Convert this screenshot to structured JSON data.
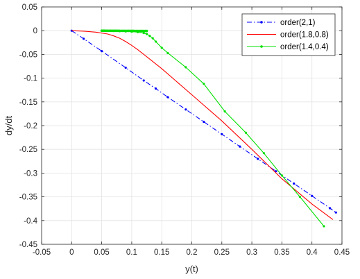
{
  "chart_data": {
    "type": "line",
    "xlabel": "y(t)",
    "ylabel": "dy/dt",
    "xlim": [
      -0.05,
      0.45
    ],
    "ylim": [
      -0.45,
      0.05
    ],
    "xticks": [
      -0.05,
      0,
      0.05,
      0.1,
      0.15,
      0.2,
      0.25,
      0.3,
      0.35,
      0.4,
      0.45
    ],
    "yticks": [
      0.05,
      0,
      -0.05,
      -0.1,
      -0.15,
      -0.2,
      -0.25,
      -0.3,
      -0.35,
      -0.4,
      -0.45
    ],
    "xtick_labels": [
      "-0.05",
      "0",
      "0.05",
      "0.1",
      "0.15",
      "0.2",
      "0.25",
      "0.3",
      "0.35",
      "0.4",
      "0.45"
    ],
    "ytick_labels": [
      "0.05",
      "0",
      "-0.05",
      "-0.1",
      "-0.15",
      "-0.2",
      "-0.25",
      "-0.3",
      "-0.35",
      "-0.4",
      "-0.45"
    ],
    "grid": true,
    "legend_position": "top-right",
    "series": [
      {
        "name": "order(2,1)",
        "color": "#0000ff",
        "line_style": "dash-dot",
        "marker": "dot",
        "x": [
          0,
          0.02,
          0.05,
          0.09,
          0.12,
          0.14,
          0.16,
          0.19,
          0.22,
          0.25,
          0.28,
          0.31,
          0.34,
          0.37,
          0.4,
          0.43,
          0.44
        ],
        "y": [
          0,
          -0.017,
          -0.043,
          -0.078,
          -0.105,
          -0.122,
          -0.14,
          -0.166,
          -0.192,
          -0.218,
          -0.244,
          -0.27,
          -0.296,
          -0.322,
          -0.348,
          -0.374,
          -0.383
        ]
      },
      {
        "name": "order(1.8,0.8)",
        "color": "#ff0000",
        "line_style": "solid",
        "marker": "none",
        "x": [
          0,
          0.02,
          0.04,
          0.06,
          0.07,
          0.08,
          0.09,
          0.1,
          0.11,
          0.13,
          0.15,
          0.2,
          0.25,
          0.3,
          0.35,
          0.4,
          0.435
        ],
        "y": [
          0,
          -0.001,
          -0.003,
          -0.007,
          -0.011,
          -0.016,
          -0.023,
          -0.031,
          -0.04,
          -0.06,
          -0.08,
          -0.135,
          -0.19,
          -0.25,
          -0.312,
          -0.365,
          -0.398
        ]
      },
      {
        "name": "order(1.4,0.4)",
        "color": "#00e000",
        "line_style": "solid",
        "marker": "dot",
        "x": [
          0.05,
          0.06,
          0.07,
          0.08,
          0.09,
          0.1,
          0.11,
          0.12,
          0.125,
          0.13,
          0.135,
          0.14,
          0.15,
          0.16,
          0.19,
          0.22,
          0.255,
          0.29,
          0.32,
          0.35,
          0.38,
          0.42
        ],
        "y": [
          0,
          -0.0003,
          -0.0006,
          -0.001,
          -0.0015,
          -0.002,
          -0.003,
          -0.005,
          -0.007,
          -0.011,
          -0.016,
          -0.023,
          -0.036,
          -0.047,
          -0.077,
          -0.112,
          -0.17,
          -0.215,
          -0.258,
          -0.305,
          -0.35,
          -0.412
        ]
      }
    ]
  }
}
